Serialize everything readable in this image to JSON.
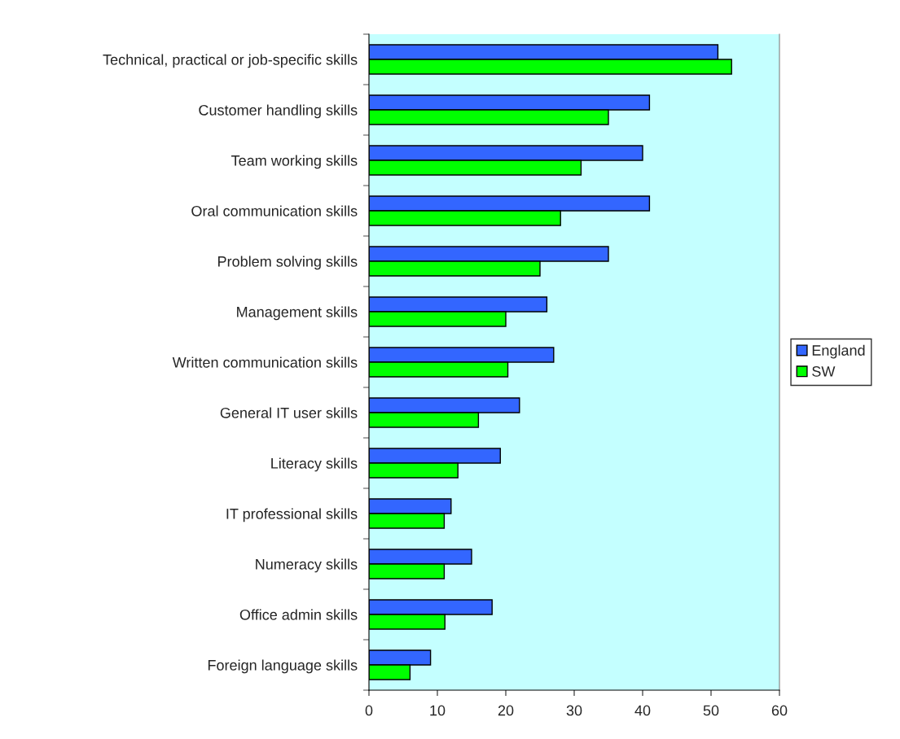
{
  "chart_data": {
    "type": "bar",
    "orientation": "horizontal",
    "categories": [
      "Technical, practical or job-specific skills",
      "Customer handling skills",
      "Team working skills",
      "Oral communication skills",
      "Problem solving skills",
      "Management skills",
      "Written communication skills",
      "General IT user skills",
      "Literacy skills",
      "IT professional skills",
      "Numeracy skills",
      "Office admin skills",
      "Foreign language skills"
    ],
    "series": [
      {
        "name": "England",
        "color": "#3366ff",
        "values": [
          51,
          41,
          40,
          41,
          35,
          26,
          27,
          22,
          19.2,
          12,
          15,
          18,
          9
        ]
      },
      {
        "name": "SW",
        "color": "#00ff00",
        "values": [
          53,
          35,
          31,
          28,
          25,
          20,
          20.3,
          16,
          13,
          11,
          11,
          11.1,
          6
        ]
      }
    ],
    "xlim": [
      0,
      60
    ],
    "xticks": [
      0,
      10,
      20,
      30,
      40,
      50,
      60
    ],
    "grid": false,
    "legend": "right"
  }
}
